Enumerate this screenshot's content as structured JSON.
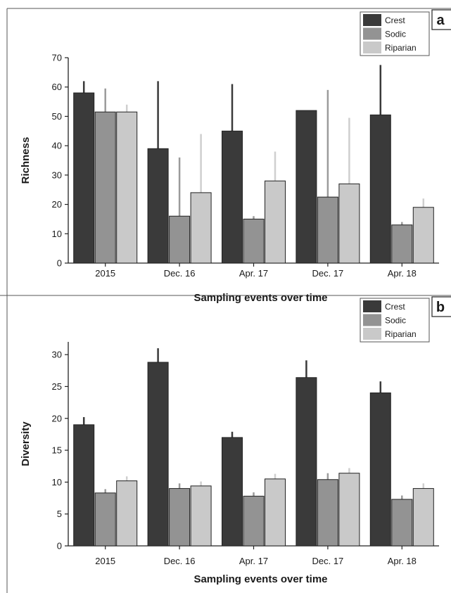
{
  "chart_data": [
    {
      "type": "bar",
      "panel_label": "a",
      "ylabel": "Richness",
      "xlabel": "Sampling events over time",
      "ylim": [
        0,
        70
      ],
      "yticks": [
        0,
        10,
        20,
        30,
        40,
        50,
        60,
        70
      ],
      "categories": [
        "2015",
        "Dec. 16",
        "Apr. 17",
        "Dec. 17",
        "Apr. 18"
      ],
      "legend_position": "top-right",
      "series": [
        {
          "name": "Crest",
          "color": "#3a3a3a",
          "values": [
            58,
            39,
            45,
            52,
            50.5
          ],
          "error_upper": [
            62,
            62,
            61,
            52,
            67.5
          ],
          "error_color": "#3a3a3a"
        },
        {
          "name": "Sodic",
          "color": "#939393",
          "values": [
            51.5,
            16,
            15,
            22.5,
            13
          ],
          "error_upper": [
            59.5,
            36,
            16,
            59,
            14
          ],
          "error_color": "#9b9b9b"
        },
        {
          "name": "Riparian",
          "color": "#c9c9c9",
          "values": [
            51.5,
            24,
            28,
            27,
            19
          ],
          "error_upper": [
            54,
            44,
            38,
            49.5,
            22
          ],
          "error_color": "#cfcfcf"
        }
      ]
    },
    {
      "type": "bar",
      "panel_label": "b",
      "ylabel": "Diversity",
      "xlabel": "Sampling events over time",
      "ylim": [
        0,
        32
      ],
      "yticks": [
        0,
        5,
        10,
        15,
        20,
        25,
        30
      ],
      "categories": [
        "2015",
        "Dec. 16",
        "Apr. 17",
        "Dec. 17",
        "Apr. 18"
      ],
      "legend_position": "top-right",
      "series": [
        {
          "name": "Crest",
          "color": "#3a3a3a",
          "values": [
            19,
            28.8,
            17,
            26.4,
            24
          ],
          "error_upper": [
            20.2,
            31,
            17.9,
            29.1,
            25.8
          ],
          "error_color": "#3a3a3a"
        },
        {
          "name": "Sodic",
          "color": "#939393",
          "values": [
            8.3,
            9,
            7.8,
            10.4,
            7.3
          ],
          "error_upper": [
            8.9,
            9.8,
            8.4,
            11.4,
            7.9
          ],
          "error_color": "#9b9b9b"
        },
        {
          "name": "Riparian",
          "color": "#c9c9c9",
          "values": [
            10.2,
            9.4,
            10.5,
            11.4,
            9
          ],
          "error_upper": [
            10.9,
            10.1,
            11.3,
            12.2,
            9.8
          ],
          "error_color": "#cfcfcf"
        }
      ]
    }
  ]
}
